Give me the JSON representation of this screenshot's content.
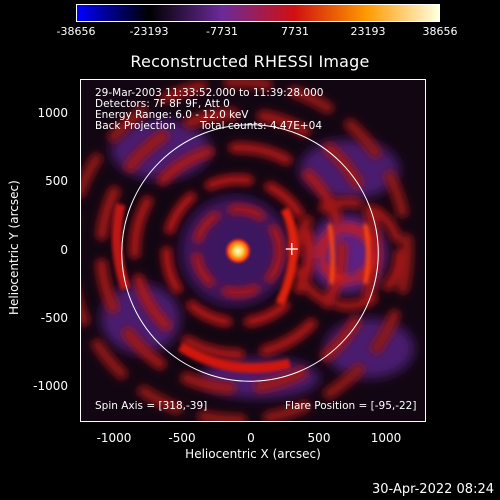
{
  "colorbar": {
    "ticks": [
      "-38656",
      "-23193",
      "-7731",
      "7731",
      "23193",
      "38656"
    ],
    "colors": [
      "#0000ff",
      "#000000",
      "#6a2a9a",
      "#d01010",
      "#ff9a00",
      "#ffffe0"
    ]
  },
  "title": "Reconstructed RHESSI Image",
  "info": {
    "line1": "29-Mar-2003 11:33:52.000 to 11:39:28.000",
    "line2": "Detectors: 7F 8F 9F, Att 0",
    "line3": "Energy Range: 6.0 - 12.0 keV",
    "line4_left": "Back Projection",
    "line4_right": "Total counts: 4.47E+04"
  },
  "bottom_info": {
    "spin_axis": "Spin Axis = [318,-39]",
    "flare_position": "Flare Position = [-95,-22]"
  },
  "axes": {
    "xlabel": "Heliocentric X (arcsec)",
    "ylabel": "Heliocentric Y (arcsec)",
    "xticks": [
      "-1000",
      "-500",
      "0",
      "500",
      "1000"
    ],
    "yticks": [
      "1000",
      "500",
      "0",
      "-500",
      "-1000"
    ],
    "xrange": [
      -1280,
      1280
    ],
    "yrange": [
      -1270,
      1270
    ]
  },
  "timestamp": "30-Apr-2022 08:24"
}
